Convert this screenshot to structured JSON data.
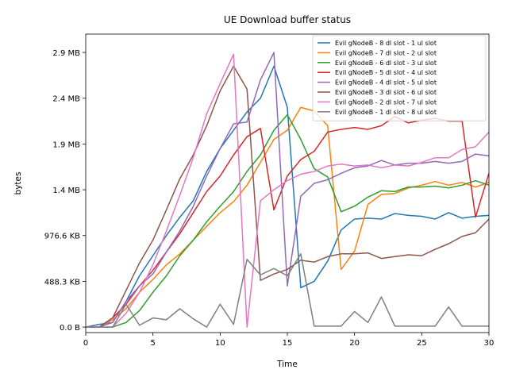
{
  "chart_data": {
    "type": "line",
    "title": "UE Download buffer status",
    "xlabel": "Time",
    "ylabel": "bytes",
    "xlim": [
      0,
      30
    ],
    "ylim": [
      -60000,
      3200000
    ],
    "xticks": [
      0,
      5,
      10,
      15,
      20,
      25,
      30
    ],
    "xtick_labels": [
      "0",
      "5",
      "10",
      "15",
      "20",
      "25",
      "30"
    ],
    "yticks": [
      0,
      500000,
      1000000,
      1500000,
      2000000,
      2500000,
      3000000
    ],
    "ytick_labels": [
      "0.0 B",
      "488.3 KB",
      "976.6 KB",
      "1.4 MB",
      "1.9 MB",
      "2.4 MB",
      "2.9 MB"
    ],
    "grid": false,
    "legend_position": "top-right",
    "x": [
      0,
      1,
      2,
      3,
      4,
      5,
      6,
      7,
      8,
      9,
      10,
      11,
      12,
      13,
      14,
      15,
      16,
      17,
      18,
      19,
      20,
      21,
      22,
      23,
      24,
      25,
      26,
      27,
      28,
      29,
      30
    ],
    "series": [
      {
        "name": "Evil gNodeB - 8 dl slot - 1 ul slot",
        "color": "#1f77b4",
        "values": [
          0,
          30000,
          50000,
          280000,
          560000,
          780000,
          1000000,
          1200000,
          1380000,
          1700000,
          1950000,
          2150000,
          2350000,
          2500000,
          2850000,
          2400000,
          430000,
          500000,
          720000,
          1060000,
          1180000,
          1190000,
          1180000,
          1240000,
          1220000,
          1210000,
          1180000,
          1250000,
          1190000,
          1210000,
          1220000
        ]
      },
      {
        "name": "Evil gNodeB - 7 dl slot - 2 ul slot",
        "color": "#ff7f0e",
        "values": [
          0,
          0,
          80000,
          200000,
          380000,
          520000,
          680000,
          800000,
          950000,
          1100000,
          1250000,
          1370000,
          1550000,
          1800000,
          2050000,
          2150000,
          2400000,
          2360000,
          2200000,
          630000,
          830000,
          1340000,
          1450000,
          1460000,
          1520000,
          1550000,
          1590000,
          1550000,
          1580000,
          1530000,
          1580000
        ]
      },
      {
        "name": "Evil gNodeB - 6 dl slot - 3 ul slot",
        "color": "#2ca02c",
        "values": [
          0,
          0,
          0,
          50000,
          180000,
          380000,
          560000,
          780000,
          950000,
          1150000,
          1320000,
          1480000,
          1700000,
          1880000,
          2150000,
          2320000,
          2050000,
          1730000,
          1640000,
          1260000,
          1320000,
          1420000,
          1490000,
          1480000,
          1530000,
          1530000,
          1540000,
          1520000,
          1550000,
          1600000,
          1550000
        ]
      },
      {
        "name": "Evil gNodeB - 5 dl slot - 4 ul slot",
        "color": "#d62728",
        "values": [
          0,
          0,
          100000,
          250000,
          450000,
          620000,
          820000,
          1020000,
          1250000,
          1480000,
          1650000,
          1880000,
          2080000,
          2170000,
          1280000,
          1650000,
          1830000,
          1920000,
          2130000,
          2160000,
          2180000,
          2160000,
          2200000,
          2300000,
          2230000,
          2260000,
          2280000,
          2250000,
          2250000,
          1200000,
          1680000
        ]
      },
      {
        "name": "Evil gNodeB - 4 dl slot - 5 ul slot",
        "color": "#9467bd",
        "values": [
          0,
          0,
          50000,
          280000,
          450000,
          580000,
          820000,
          1050000,
          1320000,
          1650000,
          1950000,
          2220000,
          2240000,
          2700000,
          3000000,
          450000,
          1430000,
          1570000,
          1610000,
          1680000,
          1740000,
          1760000,
          1820000,
          1770000,
          1790000,
          1790000,
          1810000,
          1790000,
          1810000,
          1890000,
          1870000
        ]
      },
      {
        "name": "Evil gNodeB - 3 dl slot - 6 ul slot",
        "color": "#8c564b",
        "values": [
          0,
          0,
          100000,
          400000,
          700000,
          950000,
          1280000,
          1620000,
          1880000,
          2200000,
          2580000,
          2850000,
          2600000,
          510000,
          580000,
          630000,
          730000,
          710000,
          770000,
          800000,
          800000,
          810000,
          750000,
          770000,
          790000,
          780000,
          850000,
          910000,
          990000,
          1030000,
          1180000
        ]
      },
      {
        "name": "Evil gNodeB - 2 dl slot - 7 ul slot",
        "color": "#e377c2",
        "values": [
          0,
          0,
          0,
          150000,
          380000,
          680000,
          1050000,
          1440000,
          1850000,
          2330000,
          2660000,
          2980000,
          0,
          1380000,
          1500000,
          1600000,
          1670000,
          1700000,
          1760000,
          1780000,
          1760000,
          1770000,
          1740000,
          1770000,
          1760000,
          1800000,
          1850000,
          1850000,
          1940000,
          1970000,
          2130000
        ]
      },
      {
        "name": "Evil gNodeB - 1 dl slot - 8 ul slot",
        "color": "#7f7f7f",
        "values": [
          0,
          0,
          0,
          250000,
          20000,
          100000,
          80000,
          200000,
          90000,
          0,
          250000,
          30000,
          740000,
          570000,
          640000,
          560000,
          800000,
          10000,
          10000,
          10000,
          170000,
          50000,
          330000,
          10000,
          10000,
          10000,
          10000,
          220000,
          10000,
          10000,
          10000
        ]
      }
    ]
  }
}
